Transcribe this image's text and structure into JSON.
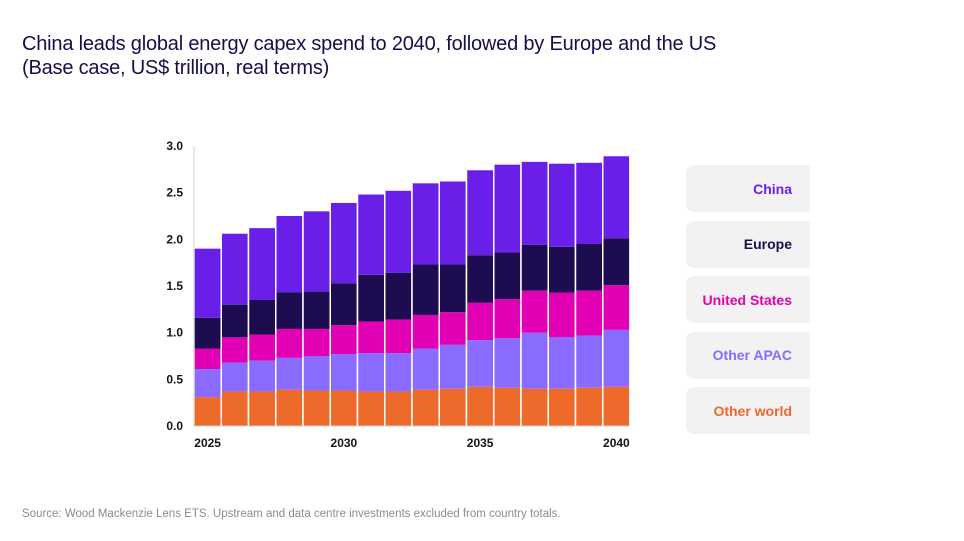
{
  "title": {
    "line1": "China leads global energy capex spend to 2040, followed by Europe and the US",
    "line2": "(Base case, US$ trillion, real terms)"
  },
  "source": "Source: Wood Mackenzie Lens ETS. Upstream and data centre investments excluded from country totals.",
  "legend": [
    {
      "label": "China",
      "color": "#6a1fe8"
    },
    {
      "label": "Europe",
      "color": "#1d0c4f"
    },
    {
      "label": "United States",
      "color": "#e100b4"
    },
    {
      "label": "Other APAC",
      "color": "#8a6bff"
    },
    {
      "label": "Other world",
      "color": "#ee6a2b"
    }
  ],
  "chart_data": {
    "type": "bar",
    "stacked": true,
    "title": "China leads global energy capex spend to 2040, followed by Europe and the US (Base case, US$ trillion, real terms)",
    "xlabel": "",
    "ylabel": "US$ trillion",
    "ylim": [
      0,
      3.0
    ],
    "yticks": [
      "0.0",
      "0.5",
      "1.0",
      "1.5",
      "2.0",
      "2.5",
      "3.0"
    ],
    "categories": [
      "2025",
      "2026",
      "2027",
      "2028",
      "2029",
      "2030",
      "2031",
      "2032",
      "2033",
      "2034",
      "2035",
      "2036",
      "2037",
      "2038",
      "2039",
      "2040"
    ],
    "xtick_labels": [
      "2025",
      "",
      "",
      "",
      "",
      "2030",
      "",
      "",
      "",
      "",
      "2035",
      "",
      "",
      "",
      "",
      "2040"
    ],
    "series": [
      {
        "name": "Other world",
        "color": "#ee6a2b",
        "values": [
          0.31,
          0.37,
          0.37,
          0.39,
          0.38,
          0.38,
          0.37,
          0.37,
          0.39,
          0.4,
          0.42,
          0.41,
          0.4,
          0.4,
          0.41,
          0.42
        ]
      },
      {
        "name": "Other APAC",
        "color": "#8a6bff",
        "values": [
          0.3,
          0.31,
          0.33,
          0.34,
          0.37,
          0.39,
          0.41,
          0.41,
          0.44,
          0.47,
          0.5,
          0.53,
          0.6,
          0.55,
          0.56,
          0.61
        ]
      },
      {
        "name": "United States",
        "color": "#e100b4",
        "values": [
          0.22,
          0.27,
          0.28,
          0.31,
          0.29,
          0.31,
          0.34,
          0.36,
          0.36,
          0.35,
          0.4,
          0.42,
          0.45,
          0.48,
          0.48,
          0.48
        ]
      },
      {
        "name": "Europe",
        "color": "#1d0c4f",
        "values": [
          0.33,
          0.35,
          0.37,
          0.39,
          0.4,
          0.45,
          0.5,
          0.5,
          0.54,
          0.51,
          0.51,
          0.5,
          0.49,
          0.49,
          0.5,
          0.5
        ]
      },
      {
        "name": "China",
        "color": "#6a1fe8",
        "values": [
          0.74,
          0.76,
          0.77,
          0.82,
          0.86,
          0.86,
          0.86,
          0.88,
          0.87,
          0.89,
          0.91,
          0.94,
          0.89,
          0.89,
          0.87,
          0.88
        ]
      }
    ]
  }
}
